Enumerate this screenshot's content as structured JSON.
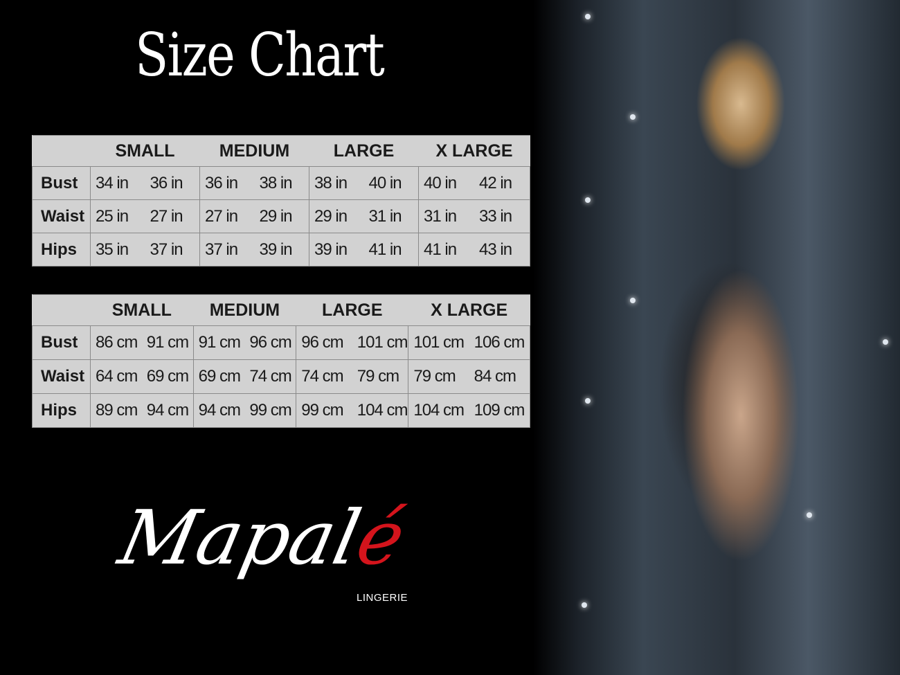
{
  "title": "Size Chart",
  "sizes": [
    "SMALL",
    "MEDIUM",
    "LARGE",
    "X LARGE"
  ],
  "table_inches": {
    "rows": [
      {
        "label": "Bust",
        "values": [
          "34 in",
          "36 in",
          "36 in",
          "38 in",
          "38 in",
          "40 in",
          "40 in",
          "42 in"
        ]
      },
      {
        "label": "Waist",
        "values": [
          "25 in",
          "27 in",
          "27 in",
          "29 in",
          "29 in",
          "31 in",
          "31 in",
          "33 in"
        ]
      },
      {
        "label": "Hips",
        "values": [
          "35 in",
          "37 in",
          "37 in",
          "39 in",
          "39 in",
          "41 in",
          "41 in",
          "43 in"
        ]
      }
    ]
  },
  "table_cm": {
    "rows": [
      {
        "label": "Bust",
        "values": [
          "86 cm",
          "91 cm",
          "91 cm",
          "96 cm",
          "96 cm",
          "101 cm",
          "101 cm",
          "106 cm"
        ]
      },
      {
        "label": "Waist",
        "values": [
          "64 cm",
          "69 cm",
          "69 cm",
          "74 cm",
          "74 cm",
          "79  cm",
          "79 cm",
          "84 cm"
        ]
      },
      {
        "label": "Hips",
        "values": [
          "89 cm",
          "94 cm",
          "94 cm",
          "99 cm",
          "99 cm",
          "104 cm",
          "104 cm",
          "109 cm"
        ]
      }
    ]
  },
  "brand": {
    "name_main": "Mapal",
    "name_accent": "é",
    "subtitle": "LINGERIE",
    "accent_color": "#d4141c"
  }
}
